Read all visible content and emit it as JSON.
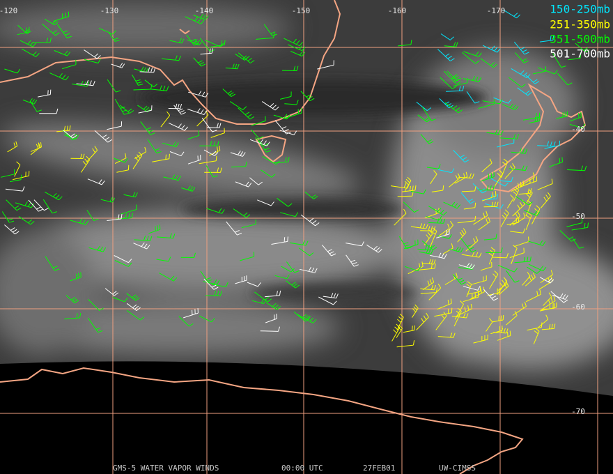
{
  "map": {
    "longitude_labels": [
      "-120",
      "-130",
      "-140",
      "-150",
      "-160",
      "-170"
    ],
    "latitude_labels": [
      "-40",
      "-50",
      "-60",
      "-70"
    ],
    "legend": [
      {
        "label": "150-250mb",
        "color": "#00e8ff"
      },
      {
        "label": "251-350mb",
        "color": "#ffff00"
      },
      {
        "label": "351-500mb",
        "color": "#00ff00"
      },
      {
        "label": "501-700mb",
        "color": "#ffffff"
      }
    ],
    "footer": [
      "GMS-5 WATER VAPOR WINDS",
      "00:00 UTC",
      "27FEB01",
      "UW-CIMSS"
    ]
  }
}
